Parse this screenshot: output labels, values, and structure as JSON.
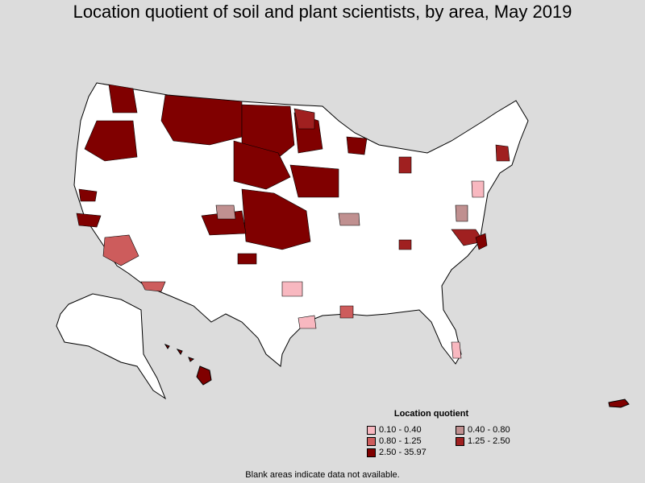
{
  "title": "Location quotient of soil and plant scientists, by area, May 2019",
  "legend": {
    "title": "Location quotient",
    "items": [
      {
        "label": "0.10 - 0.40",
        "color": "#f8b8c0"
      },
      {
        "label": "0.40 - 0.80",
        "color": "#c09090"
      },
      {
        "label": "0.80 - 1.25",
        "color": "#cd5c5c"
      },
      {
        "label": "1.25 - 2.50",
        "color": "#a02020"
      },
      {
        "label": "2.50 - 35.97",
        "color": "#800000"
      }
    ]
  },
  "note": "Blank areas indicate data not available.",
  "colors": {
    "background": "#dcdcdc",
    "land": "#ffffff",
    "border": "#000000"
  }
}
